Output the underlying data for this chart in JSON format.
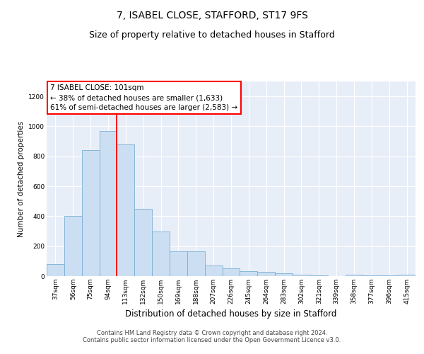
{
  "title": "7, ISABEL CLOSE, STAFFORD, ST17 9FS",
  "subtitle": "Size of property relative to detached houses in Stafford",
  "xlabel": "Distribution of detached houses by size in Stafford",
  "ylabel": "Number of detached properties",
  "categories": [
    "37sqm",
    "56sqm",
    "75sqm",
    "94sqm",
    "113sqm",
    "132sqm",
    "150sqm",
    "169sqm",
    "188sqm",
    "207sqm",
    "226sqm",
    "245sqm",
    "264sqm",
    "283sqm",
    "302sqm",
    "321sqm",
    "339sqm",
    "358sqm",
    "377sqm",
    "396sqm",
    "415sqm"
  ],
  "values": [
    80,
    400,
    840,
    970,
    880,
    450,
    300,
    165,
    165,
    70,
    50,
    35,
    30,
    20,
    10,
    5,
    0,
    10,
    5,
    5,
    10
  ],
  "bar_color": "#ccdff2",
  "bar_edge_color": "#7aaed4",
  "red_line_x": 3.5,
  "annotation_title": "7 ISABEL CLOSE: 101sqm",
  "annotation_line1": "← 38% of detached houses are smaller (1,633)",
  "annotation_line2": "61% of semi-detached houses are larger (2,583) →",
  "ylim": [
    0,
    1300
  ],
  "yticks": [
    0,
    200,
    400,
    600,
    800,
    1000,
    1200
  ],
  "background_color": "#ffffff",
  "plot_bg_color": "#e8eef8",
  "grid_color": "#ffffff",
  "title_fontsize": 10,
  "subtitle_fontsize": 9,
  "xlabel_fontsize": 8.5,
  "ylabel_fontsize": 7.5,
  "tick_fontsize": 6.5,
  "ann_fontsize": 7.5,
  "footer_text": "Contains HM Land Registry data © Crown copyright and database right 2024.\nContains public sector information licensed under the Open Government Licence v3.0."
}
